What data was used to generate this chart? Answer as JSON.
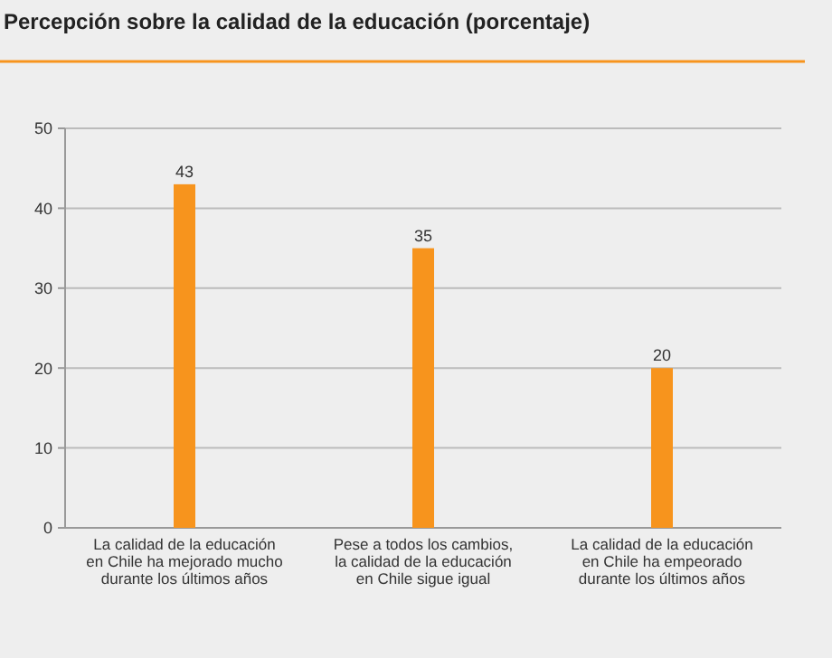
{
  "chart_data": {
    "type": "bar",
    "title": "Percepción sobre la calidad de la educación  (porcentaje)",
    "categories": [
      "La calidad de la educación\nen Chile ha mejorado mucho\ndurante los últimos años",
      "Pese a todos los cambios,\nla calidad de la educación\nen Chile sigue igual",
      "La calidad de la educación\nen Chile ha empeorado\ndurante los últimos años"
    ],
    "values": [
      43,
      35,
      20
    ],
    "color": "#f7941d",
    "ylim": [
      0,
      50
    ],
    "yticks": [
      0,
      10,
      20,
      30,
      40,
      50
    ],
    "grid": "y",
    "data_labels": true
  }
}
